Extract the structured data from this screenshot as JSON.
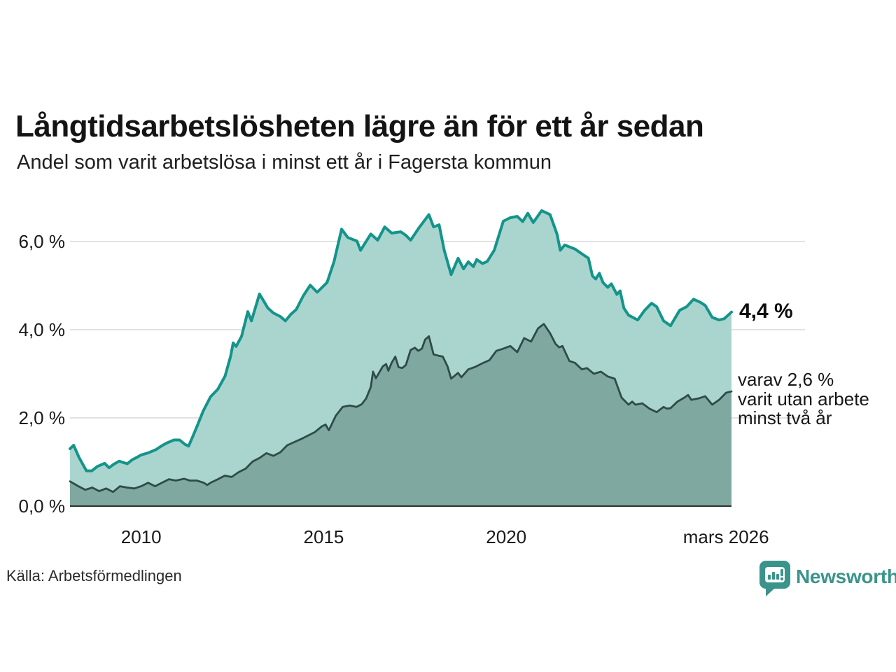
{
  "title": "Långtidsarbetslösheten lägre än för ett år sedan",
  "subtitle": "Andel som varit arbetslösa i minst ett år i Fagersta kommun",
  "source": "Källa: Arbetsförmedlingen",
  "logo": {
    "text": "Newsworthy",
    "color": "#3a948b",
    "icon": "newsworthy-bars-badge"
  },
  "annotations": {
    "latest_total": "4,4 %",
    "sub_lines": [
      "varav 2,6 %",
      "varit utan arbete",
      "minst två år"
    ]
  },
  "colors": {
    "background": "#ffffff",
    "gridline": "#d8d8d8",
    "baseline": "#2f2f2f",
    "text": "#1a1a1a"
  },
  "chart_data": {
    "type": "area",
    "title": "Långtidsarbetslösheten lägre än för ett år sedan",
    "xlabel": "",
    "ylabel": "",
    "x_range": [
      2008.05,
      2026.17
    ],
    "ylim": [
      0,
      7.0
    ],
    "grid": "horizontal",
    "legend_position": "right-annotations",
    "y_ticks": [
      {
        "label": "0,0 %",
        "value": 0
      },
      {
        "label": "2,0 %",
        "value": 2
      },
      {
        "label": "4,0 %",
        "value": 4
      },
      {
        "label": "6,0 %",
        "value": 6
      }
    ],
    "x_ticks": [
      {
        "label": "2010",
        "year": 2010.0
      },
      {
        "label": "2015",
        "year": 2015.0
      },
      {
        "label": "2020",
        "year": 2020.0
      },
      {
        "label": "mars 2026",
        "year": 2026.02
      }
    ],
    "series": [
      {
        "name": "Andel arbetslösa minst ett år",
        "end_label": "4,4 %",
        "line_color": "#14948a",
        "fill_color": "#aad5cf",
        "line_width": 4,
        "points": [
          [
            2008.05,
            1.3
          ],
          [
            2008.15,
            1.38
          ],
          [
            2008.3,
            1.1
          ],
          [
            2008.5,
            0.8
          ],
          [
            2008.65,
            0.8
          ],
          [
            2008.8,
            0.9
          ],
          [
            2009.0,
            0.97
          ],
          [
            2009.12,
            0.87
          ],
          [
            2009.25,
            0.95
          ],
          [
            2009.4,
            1.02
          ],
          [
            2009.5,
            0.99
          ],
          [
            2009.62,
            0.96
          ],
          [
            2009.75,
            1.05
          ],
          [
            2009.87,
            1.1
          ],
          [
            2010.0,
            1.16
          ],
          [
            2010.2,
            1.21
          ],
          [
            2010.4,
            1.28
          ],
          [
            2010.55,
            1.36
          ],
          [
            2010.7,
            1.43
          ],
          [
            2010.9,
            1.5
          ],
          [
            2011.05,
            1.5
          ],
          [
            2011.2,
            1.4
          ],
          [
            2011.3,
            1.36
          ],
          [
            2011.45,
            1.65
          ],
          [
            2011.55,
            1.85
          ],
          [
            2011.7,
            2.16
          ],
          [
            2011.9,
            2.48
          ],
          [
            2012.1,
            2.65
          ],
          [
            2012.3,
            2.95
          ],
          [
            2012.45,
            3.4
          ],
          [
            2012.52,
            3.7
          ],
          [
            2012.6,
            3.62
          ],
          [
            2012.75,
            3.85
          ],
          [
            2012.92,
            4.41
          ],
          [
            2013.02,
            4.2
          ],
          [
            2013.24,
            4.81
          ],
          [
            2013.47,
            4.49
          ],
          [
            2013.62,
            4.38
          ],
          [
            2013.81,
            4.3
          ],
          [
            2013.95,
            4.2
          ],
          [
            2014.1,
            4.35
          ],
          [
            2014.25,
            4.46
          ],
          [
            2014.44,
            4.77
          ],
          [
            2014.63,
            5.01
          ],
          [
            2014.82,
            4.85
          ],
          [
            2015.09,
            5.07
          ],
          [
            2015.28,
            5.54
          ],
          [
            2015.49,
            6.28
          ],
          [
            2015.66,
            6.09
          ],
          [
            2015.91,
            6.01
          ],
          [
            2016.01,
            5.8
          ],
          [
            2016.29,
            6.17
          ],
          [
            2016.48,
            6.03
          ],
          [
            2016.67,
            6.33
          ],
          [
            2016.86,
            6.19
          ],
          [
            2017.11,
            6.22
          ],
          [
            2017.25,
            6.14
          ],
          [
            2017.38,
            6.03
          ],
          [
            2017.6,
            6.3
          ],
          [
            2017.88,
            6.61
          ],
          [
            2018.01,
            6.33
          ],
          [
            2018.16,
            6.38
          ],
          [
            2018.3,
            5.8
          ],
          [
            2018.49,
            5.25
          ],
          [
            2018.68,
            5.62
          ],
          [
            2018.83,
            5.38
          ],
          [
            2018.96,
            5.54
          ],
          [
            2019.1,
            5.43
          ],
          [
            2019.19,
            5.59
          ],
          [
            2019.35,
            5.5
          ],
          [
            2019.48,
            5.55
          ],
          [
            2019.67,
            5.8
          ],
          [
            2019.92,
            6.46
          ],
          [
            2020.11,
            6.54
          ],
          [
            2020.3,
            6.57
          ],
          [
            2020.45,
            6.45
          ],
          [
            2020.59,
            6.64
          ],
          [
            2020.74,
            6.43
          ],
          [
            2020.97,
            6.7
          ],
          [
            2021.2,
            6.61
          ],
          [
            2021.39,
            6.17
          ],
          [
            2021.48,
            5.8
          ],
          [
            2021.6,
            5.92
          ],
          [
            2021.88,
            5.83
          ],
          [
            2022.02,
            5.75
          ],
          [
            2022.25,
            5.62
          ],
          [
            2022.36,
            5.22
          ],
          [
            2022.45,
            5.15
          ],
          [
            2022.55,
            5.28
          ],
          [
            2022.65,
            5.07
          ],
          [
            2022.78,
            4.96
          ],
          [
            2022.88,
            5.04
          ],
          [
            2023.03,
            4.8
          ],
          [
            2023.12,
            4.88
          ],
          [
            2023.22,
            4.49
          ],
          [
            2023.35,
            4.33
          ],
          [
            2023.6,
            4.22
          ],
          [
            2023.79,
            4.44
          ],
          [
            2023.98,
            4.6
          ],
          [
            2024.12,
            4.52
          ],
          [
            2024.31,
            4.2
          ],
          [
            2024.5,
            4.09
          ],
          [
            2024.75,
            4.44
          ],
          [
            2024.94,
            4.52
          ],
          [
            2025.13,
            4.69
          ],
          [
            2025.32,
            4.62
          ],
          [
            2025.45,
            4.55
          ],
          [
            2025.64,
            4.28
          ],
          [
            2025.83,
            4.22
          ],
          [
            2025.97,
            4.25
          ],
          [
            2026.17,
            4.4
          ]
        ]
      },
      {
        "name": "varav utan arbete minst två år",
        "end_label": "varav 2,6 %",
        "line_color": "#2e4c47",
        "fill_color": "#7fa8a0",
        "line_width": 2.8,
        "points": [
          [
            2008.05,
            0.56
          ],
          [
            2008.28,
            0.45
          ],
          [
            2008.47,
            0.37
          ],
          [
            2008.66,
            0.42
          ],
          [
            2008.85,
            0.34
          ],
          [
            2009.04,
            0.4
          ],
          [
            2009.23,
            0.32
          ],
          [
            2009.42,
            0.45
          ],
          [
            2009.61,
            0.42
          ],
          [
            2009.81,
            0.4
          ],
          [
            2010.0,
            0.45
          ],
          [
            2010.19,
            0.53
          ],
          [
            2010.38,
            0.45
          ],
          [
            2010.57,
            0.53
          ],
          [
            2010.76,
            0.61
          ],
          [
            2010.95,
            0.58
          ],
          [
            2011.18,
            0.62
          ],
          [
            2011.33,
            0.58
          ],
          [
            2011.52,
            0.58
          ],
          [
            2011.71,
            0.53
          ],
          [
            2011.81,
            0.48
          ],
          [
            2011.9,
            0.53
          ],
          [
            2012.1,
            0.61
          ],
          [
            2012.29,
            0.69
          ],
          [
            2012.48,
            0.66
          ],
          [
            2012.67,
            0.77
          ],
          [
            2012.86,
            0.85
          ],
          [
            2013.05,
            1.01
          ],
          [
            2013.24,
            1.09
          ],
          [
            2013.43,
            1.2
          ],
          [
            2013.62,
            1.14
          ],
          [
            2013.81,
            1.22
          ],
          [
            2014.0,
            1.38
          ],
          [
            2014.19,
            1.45
          ],
          [
            2014.38,
            1.52
          ],
          [
            2014.57,
            1.6
          ],
          [
            2014.76,
            1.68
          ],
          [
            2014.95,
            1.81
          ],
          [
            2015.05,
            1.85
          ],
          [
            2015.14,
            1.72
          ],
          [
            2015.33,
            2.05
          ],
          [
            2015.52,
            2.25
          ],
          [
            2015.71,
            2.28
          ],
          [
            2015.9,
            2.25
          ],
          [
            2016.04,
            2.31
          ],
          [
            2016.16,
            2.44
          ],
          [
            2016.29,
            2.7
          ],
          [
            2016.35,
            3.05
          ],
          [
            2016.43,
            2.9
          ],
          [
            2016.62,
            3.17
          ],
          [
            2016.71,
            3.22
          ],
          [
            2016.77,
            3.07
          ],
          [
            2016.86,
            3.25
          ],
          [
            2016.96,
            3.39
          ],
          [
            2017.05,
            3.15
          ],
          [
            2017.15,
            3.13
          ],
          [
            2017.25,
            3.2
          ],
          [
            2017.38,
            3.54
          ],
          [
            2017.5,
            3.59
          ],
          [
            2017.59,
            3.52
          ],
          [
            2017.69,
            3.57
          ],
          [
            2017.78,
            3.78
          ],
          [
            2017.88,
            3.85
          ],
          [
            2018.01,
            3.44
          ],
          [
            2018.15,
            3.41
          ],
          [
            2018.26,
            3.39
          ],
          [
            2018.39,
            3.17
          ],
          [
            2018.49,
            2.89
          ],
          [
            2018.68,
            3.02
          ],
          [
            2018.77,
            2.92
          ],
          [
            2018.96,
            3.1
          ],
          [
            2019.16,
            3.16
          ],
          [
            2019.35,
            3.24
          ],
          [
            2019.54,
            3.31
          ],
          [
            2019.73,
            3.52
          ],
          [
            2019.92,
            3.57
          ],
          [
            2020.11,
            3.63
          ],
          [
            2020.3,
            3.49
          ],
          [
            2020.49,
            3.81
          ],
          [
            2020.68,
            3.73
          ],
          [
            2020.87,
            4.03
          ],
          [
            2021.03,
            4.13
          ],
          [
            2021.2,
            3.92
          ],
          [
            2021.35,
            3.68
          ],
          [
            2021.45,
            3.6
          ],
          [
            2021.54,
            3.63
          ],
          [
            2021.73,
            3.29
          ],
          [
            2021.88,
            3.25
          ],
          [
            2022.07,
            3.1
          ],
          [
            2022.21,
            3.13
          ],
          [
            2022.4,
            3.0
          ],
          [
            2022.59,
            3.05
          ],
          [
            2022.78,
            2.94
          ],
          [
            2022.97,
            2.89
          ],
          [
            2023.16,
            2.46
          ],
          [
            2023.35,
            2.3
          ],
          [
            2023.45,
            2.37
          ],
          [
            2023.54,
            2.3
          ],
          [
            2023.73,
            2.33
          ],
          [
            2023.92,
            2.21
          ],
          [
            2024.12,
            2.13
          ],
          [
            2024.31,
            2.25
          ],
          [
            2024.4,
            2.21
          ],
          [
            2024.5,
            2.22
          ],
          [
            2024.69,
            2.37
          ],
          [
            2024.88,
            2.46
          ],
          [
            2024.98,
            2.52
          ],
          [
            2025.07,
            2.41
          ],
          [
            2025.26,
            2.44
          ],
          [
            2025.45,
            2.49
          ],
          [
            2025.64,
            2.3
          ],
          [
            2025.83,
            2.41
          ],
          [
            2026.02,
            2.57
          ],
          [
            2026.17,
            2.6
          ]
        ]
      }
    ]
  }
}
